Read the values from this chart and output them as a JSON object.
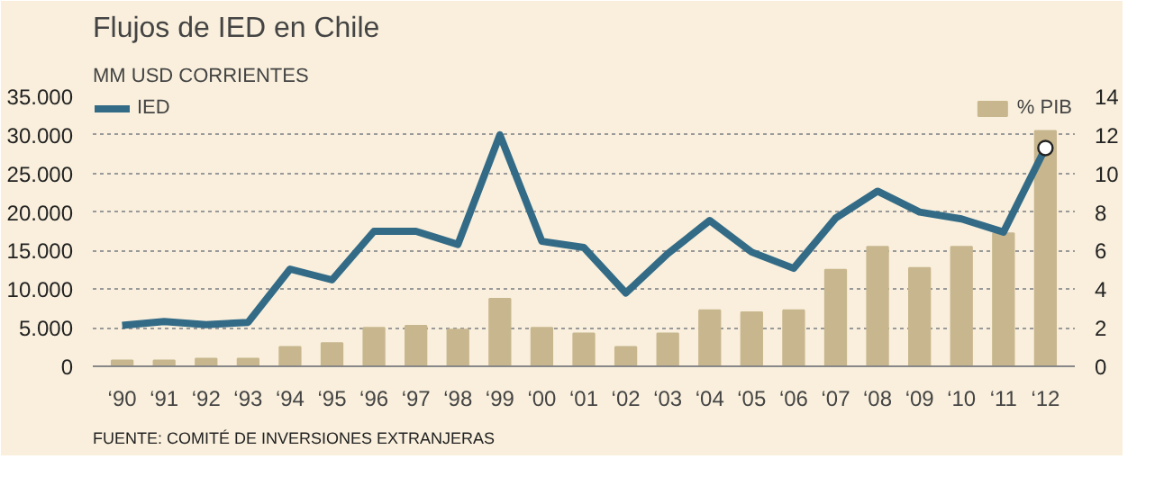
{
  "chart_data": {
    "type": "line",
    "title": "Flujos de IED en Chile",
    "ylabel": "MM USD CORRIENTES",
    "categories": [
      "‘90",
      "‘91",
      "‘92",
      "‘93",
      "‘94",
      "‘95",
      "‘96",
      "‘97",
      "‘98",
      "‘99",
      "‘00",
      "‘01",
      "‘02",
      "‘03",
      "‘04",
      "‘05",
      "‘06",
      "‘07",
      "‘08",
      "‘09",
      "‘10",
      "‘11",
      "‘12"
    ],
    "series": [
      {
        "name": "IED",
        "color": "#336b87",
        "values": [
          5300,
          5800,
          5400,
          5700,
          12600,
          11200,
          17500,
          17500,
          15800,
          30000,
          16200,
          15400,
          9500,
          14600,
          18900,
          14800,
          12700,
          19200,
          22700,
          20000,
          19100,
          17400,
          28300
        ]
      },
      {
        "name": "% PIB",
        "type": "bar",
        "axis": "y2",
        "color": "#c8b78e",
        "values": [
          0.3,
          0.3,
          0.4,
          0.4,
          1.0,
          1.2,
          2.0,
          2.1,
          1.9,
          3.5,
          2.0,
          1.7,
          1.0,
          1.7,
          2.9,
          2.8,
          2.9,
          5.0,
          6.2,
          5.1,
          6.2,
          6.9,
          12.2
        ]
      },
      {
        "type": "scatter",
        "color": "#ffffff",
        "values": [
          null,
          null,
          null,
          null,
          null,
          null,
          null,
          null,
          null,
          null,
          null,
          null,
          null,
          null,
          null,
          null,
          null,
          null,
          null,
          null,
          null,
          null,
          28300
        ]
      }
    ],
    "ylim": [
      0,
      35000
    ],
    "yticks": [
      {
        "value": 0,
        "label": "0"
      },
      {
        "value": 5000,
        "label": "5.000"
      },
      {
        "value": 10000,
        "label": "10.000"
      },
      {
        "value": 15000,
        "label": "15.000"
      },
      {
        "value": 20000,
        "label": "20.000"
      },
      {
        "value": 25000,
        "label": "25.000"
      },
      {
        "value": 30000,
        "label": "30.000"
      },
      {
        "value": 35000,
        "label": "35.000"
      }
    ],
    "y2lim": [
      0,
      14
    ],
    "y2ticks": [
      0,
      2,
      4,
      6,
      8,
      10,
      12,
      14
    ],
    "grid": "y",
    "legend": "top",
    "annotations": [
      "FUENTE: COMITÉ DE INVERSIONES EXTRANJERAS"
    ]
  }
}
